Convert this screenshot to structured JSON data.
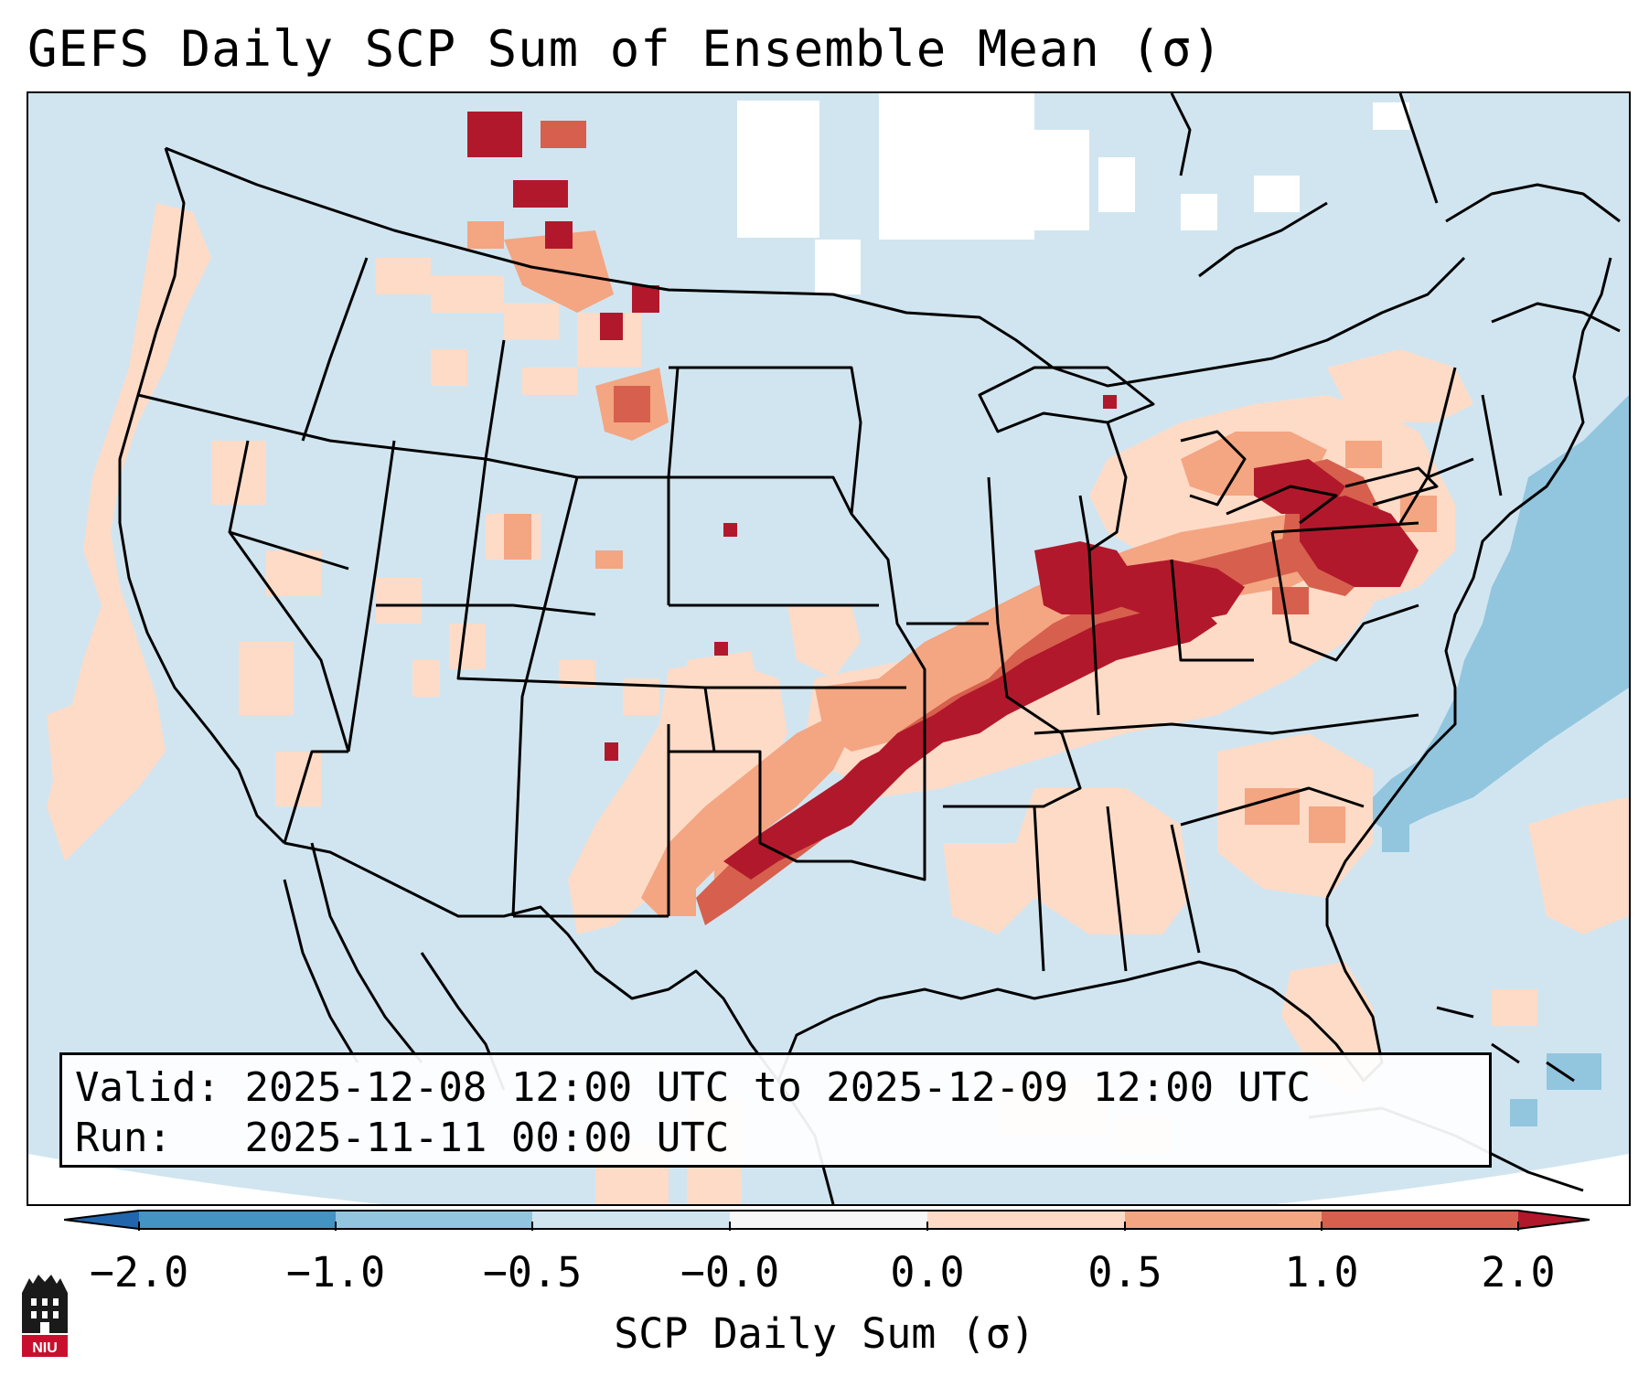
{
  "title": "GEFS Daily SCP Sum of Ensemble Mean (σ)",
  "info": {
    "valid_label": "Valid:",
    "valid_range": "2025-12-08 12:00 UTC to 2025-12-09 12:00 UTC",
    "run_label": "Run:",
    "run_time": "2025-11-11 00:00 UTC"
  },
  "colorbar": {
    "label": "SCP Daily Sum (σ)",
    "ticks": [
      "−2.0",
      "−1.0",
      "−0.5",
      "−0.0",
      "0.0",
      "0.5",
      "1.0",
      "2.0"
    ],
    "colors": {
      "below_min": "#2166ac",
      "bin_neg2_neg1": "#4393c3",
      "bin_neg1_neg05": "#92c5de",
      "bin_neg05_0": "#d1e5f0",
      "bin_zero": "#f7f7f7",
      "bin_0_05": "#fddbc7",
      "bin_05_1": "#f4a582",
      "bin_1_2": "#d6604d",
      "above_max": "#b2182b"
    }
  },
  "logo": {
    "text": "NIU",
    "color": "#c8102e"
  },
  "map": {
    "region": "Contiguous United States",
    "max_band": "Eastern Oklahoma / Arkansas through Ohio Valley to Pennsylvania",
    "background_color": "#d1e5f0"
  }
}
